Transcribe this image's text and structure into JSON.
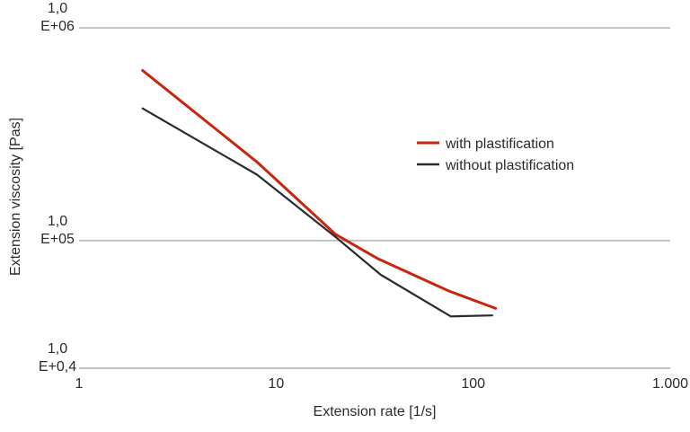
{
  "chart_data": {
    "type": "line",
    "title": "",
    "xlabel": "Extension rate [1/s]",
    "ylabel": "Extension viscosity [Pas]",
    "x_scale": "log",
    "y_scale": "log",
    "xlim": [
      1,
      1000
    ],
    "ylim": [
      25118.86,
      1000000
    ],
    "x_ticks": [
      {
        "value": 1,
        "label": "1"
      },
      {
        "value": 10,
        "label": "10"
      },
      {
        "value": 100,
        "label": "100"
      },
      {
        "value": 1000,
        "label": "1.000"
      }
    ],
    "y_ticks": [
      {
        "value": 1000000,
        "lines": [
          "1,0",
          "E+06"
        ]
      },
      {
        "value": 100000,
        "lines": [
          "1,0",
          "E+05"
        ]
      },
      {
        "value": 25118.86,
        "lines": [
          "1,0",
          "E+0,4"
        ]
      }
    ],
    "grid": "horizontal lines at y tick values",
    "legend_position": "right-center",
    "series": [
      {
        "name": "with plastification",
        "color": "#c8260f",
        "x": [
          2.1,
          8,
          20,
          33,
          75,
          130
        ],
        "y": [
          631000,
          234000,
          107000,
          82000,
          58000,
          48000
        ]
      },
      {
        "name": "without plastification",
        "color": "#2b2b2b",
        "x": [
          2.1,
          8,
          20,
          34,
          77,
          125
        ],
        "y": [
          418000,
          204000,
          104000,
          69000,
          44000,
          44500
        ]
      }
    ]
  }
}
